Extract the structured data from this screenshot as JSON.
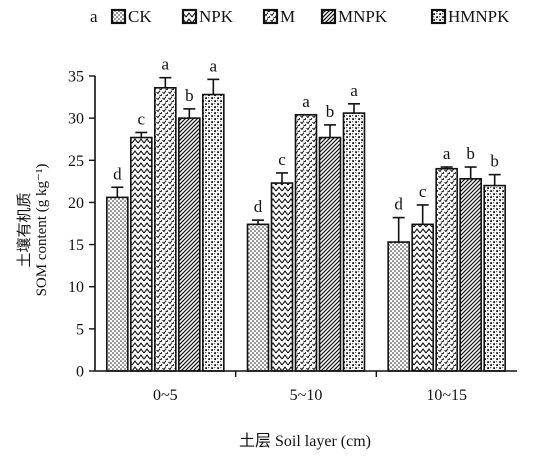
{
  "chart_data": {
    "type": "bar",
    "panel_label": "a",
    "categories": [
      "0~5",
      "5~10",
      "10~15"
    ],
    "xlabel": "土层 Soil layer (cm)",
    "ylabel_line1": "土壤有机质",
    "ylabel_line2": "SOM content (g kg⁻¹)",
    "ylim": [
      0,
      35
    ],
    "yticks": [
      0,
      5,
      10,
      15,
      20,
      25,
      30,
      35
    ],
    "legend_position": "top",
    "series": [
      {
        "name": "CK",
        "pattern": "dots",
        "values": [
          20.6,
          17.4,
          15.3
        ],
        "errors": [
          1.2,
          0.5,
          2.9
        ],
        "letters": [
          "d",
          "d",
          "d"
        ]
      },
      {
        "name": "NPK",
        "pattern": "zigzag",
        "values": [
          27.7,
          22.3,
          17.4
        ],
        "errors": [
          0.6,
          1.2,
          2.3
        ],
        "letters": [
          "c",
          "c",
          "c"
        ]
      },
      {
        "name": "M",
        "pattern": "checks",
        "values": [
          33.6,
          30.4,
          24.0
        ],
        "errors": [
          1.2,
          0.0,
          0.2
        ],
        "letters": [
          "a",
          "a",
          "a"
        ]
      },
      {
        "name": "MNPK",
        "pattern": "diagonal",
        "values": [
          30.0,
          27.7,
          22.8
        ],
        "errors": [
          1.1,
          1.5,
          1.4
        ],
        "letters": [
          "b",
          "b",
          "b"
        ]
      },
      {
        "name": "HMNPK",
        "pattern": "crosshatch",
        "values": [
          32.8,
          30.6,
          22.0
        ],
        "errors": [
          1.8,
          1.1,
          1.3
        ],
        "letters": [
          "a",
          "a",
          "b"
        ]
      }
    ]
  }
}
